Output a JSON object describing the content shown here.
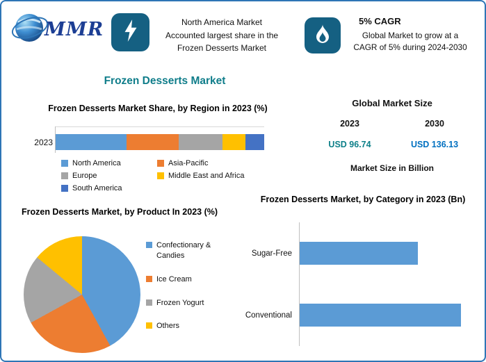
{
  "colors": {
    "page_border": "#2e75b6",
    "tile": "#156082",
    "accent_teal": "#0f7d8a",
    "value_2023": "#0e8089",
    "value_2030": "#0070c0",
    "bar_blue": "#5b9bd5"
  },
  "header": {
    "logo_text": "MMR",
    "callout1": {
      "icon": "lightning-bolt-icon",
      "lines": [
        "North America Market",
        "Accounted largest share in the",
        "Frozen Desserts Market"
      ]
    },
    "callout2": {
      "icon": "flame-icon",
      "title": "5% CAGR",
      "lines": [
        "Global Market to grow at a",
        "CAGR of 5% during 2024-2030"
      ]
    }
  },
  "main_title": "Frozen Desserts Market",
  "market_size": {
    "title": "Global Market Size",
    "year_left": "2023",
    "year_right": "2030",
    "value_left": "USD 96.74",
    "value_right": "USD 136.13",
    "note": "Market Size in Billion"
  },
  "chart_data": [
    {
      "type": "bar",
      "subtype": "stacked-horizontal-100pct",
      "title": "Frozen Desserts Market Share, by Region in 2023 (%)",
      "categories": [
        "2023"
      ],
      "series": [
        {
          "name": "North America",
          "color": "#5b9bd5",
          "values": [
            34
          ]
        },
        {
          "name": "Asia-Pacific",
          "color": "#ed7d31",
          "values": [
            25
          ]
        },
        {
          "name": "Europe",
          "color": "#a5a5a5",
          "values": [
            21
          ]
        },
        {
          "name": "Middle East and Africa",
          "color": "#ffc000",
          "values": [
            11
          ]
        },
        {
          "name": "South America",
          "color": "#4472c4",
          "values": [
            9
          ]
        }
      ],
      "xlim": [
        0,
        100
      ],
      "legend_position": "bottom",
      "grid": false
    },
    {
      "type": "pie",
      "title": "Frozen Desserts Market, by Product In 2023 (%)",
      "labels": [
        "Confectionary & Candies",
        "Ice Cream",
        "Frozen Yogurt",
        "Others"
      ],
      "values": [
        42,
        25,
        19,
        14
      ],
      "colors": [
        "#5b9bd5",
        "#ed7d31",
        "#a5a5a5",
        "#ffc000"
      ],
      "legend_position": "right"
    },
    {
      "type": "bar",
      "subtype": "horizontal",
      "title": "Frozen Desserts Market, by Category in 2023 (Bn)",
      "categories": [
        "Sugar-Free",
        "Conventional"
      ],
      "values": [
        41,
        56
      ],
      "color": "#5b9bd5",
      "xlim": [
        0,
        60
      ],
      "grid": false
    }
  ]
}
